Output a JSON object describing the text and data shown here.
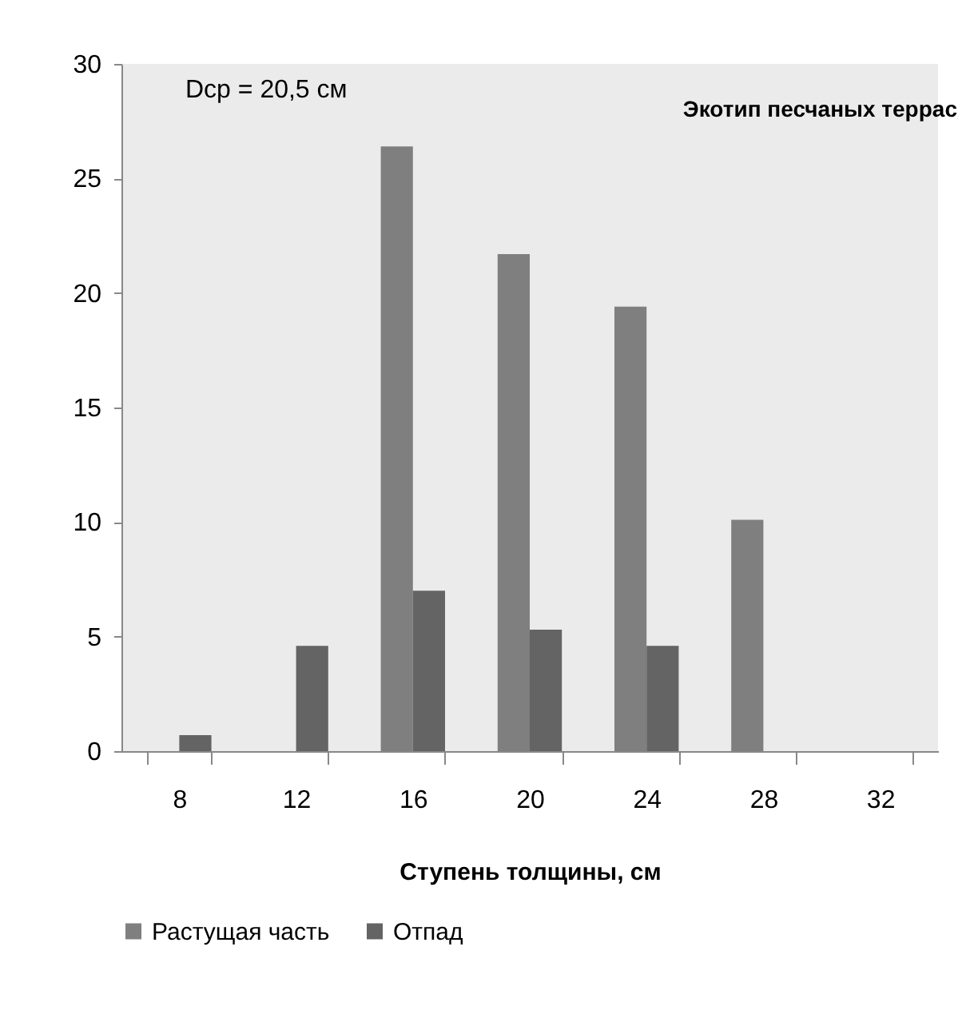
{
  "chart_data": {
    "type": "bar",
    "title": "Экотип песчаных террас",
    "xlabel": "Ступень толщины, см",
    "annotations": [
      "Dcp = 20,5 см"
    ],
    "categories": [
      "8",
      "12",
      "16",
      "20",
      "24",
      "28",
      "32"
    ],
    "series": [
      {
        "name": "Растущая часть",
        "color": "#7f7f7f",
        "values": [
          null,
          null,
          26.4,
          21.7,
          19.4,
          10.1,
          null
        ]
      },
      {
        "name": "Отпад",
        "color": "#646464",
        "values": [
          0.7,
          4.6,
          7.0,
          5.3,
          4.6,
          null,
          null
        ]
      }
    ],
    "ylim": [
      0,
      30
    ],
    "yticks": [
      0,
      5,
      10,
      15,
      20,
      25,
      30
    ],
    "grid": false,
    "legend": "bottom"
  }
}
